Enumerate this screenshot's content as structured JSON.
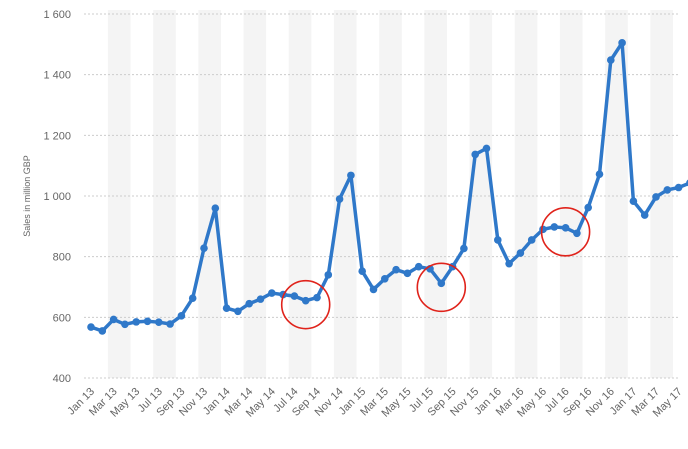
{
  "chart_data": {
    "type": "line",
    "title": "",
    "xlabel": "",
    "ylabel": "Sales in million GBP",
    "ylim": [
      400,
      1600
    ],
    "yticks": [
      400,
      600,
      800,
      1000,
      1200,
      1400,
      1600
    ],
    "ytick_labels": [
      "400",
      "600",
      "800",
      "1 000",
      "1 200",
      "1 400",
      "1 600"
    ],
    "grid": "horizontal dotted",
    "legend": "none",
    "colors": {
      "line": "#2f78c9",
      "circle": "#e0231b",
      "band": "#f4f4f4",
      "grid": "#cccccc",
      "text": "#666666"
    },
    "x": [
      "Jan 13",
      "Feb 13",
      "Mar 13",
      "Apr 13",
      "May 13",
      "Jun 13",
      "Jul 13",
      "Aug 13",
      "Sep 13",
      "Oct 13",
      "Nov 13",
      "Dec 13",
      "Jan 14",
      "Feb 14",
      "Mar 14",
      "Apr 14",
      "May 14",
      "Jun 14",
      "Jul 14",
      "Aug 14",
      "Sep 14",
      "Oct 14",
      "Nov 14",
      "Dec 14",
      "Jan 15",
      "Feb 15",
      "Mar 15",
      "Apr 15",
      "May 15",
      "Jun 15",
      "Jul 15",
      "Aug 15",
      "Sep 15",
      "Oct 15",
      "Nov 15",
      "Dec 15",
      "Jan 16",
      "Feb 16",
      "Mar 16",
      "Apr 16",
      "May 16",
      "Jun 16",
      "Jul 16",
      "Aug 16",
      "Sep 16",
      "Oct 16",
      "Nov 16",
      "Dec 16",
      "Jan 17",
      "Feb 17",
      "Mar 17",
      "Apr 17",
      "May 17",
      "Jun 17"
    ],
    "x_tick_labels": [
      "Jan 13",
      "Mar 13",
      "May 13",
      "Jul 13",
      "Sep 13",
      "Nov 13",
      "Jan 14",
      "Mar 14",
      "May 14",
      "Jul 14",
      "Sep 14",
      "Nov 14",
      "Jan 15",
      "Mar 15",
      "May 15",
      "Jul 15",
      "Sep 15",
      "Nov 15",
      "Jan 16",
      "Mar 16",
      "May 16",
      "Jul 16",
      "Sep 16",
      "Nov 16",
      "Jan 17",
      "Mar 17",
      "May 17"
    ],
    "series": [
      {
        "values": [
          568,
          555,
          593,
          577,
          585,
          587,
          584,
          578,
          605,
          663,
          828,
          960,
          630,
          620,
          645,
          660,
          680,
          675,
          670,
          655,
          665,
          740,
          990,
          1068,
          752,
          692,
          727,
          757,
          745,
          767,
          760,
          712,
          767,
          827,
          1137,
          1157,
          855,
          777,
          812,
          855,
          890,
          898,
          895,
          877,
          962,
          1072,
          1448,
          1505,
          983,
          937,
          997,
          1020,
          1028,
          1043
        ]
      }
    ],
    "annotations": [
      {
        "type": "circle",
        "center": "Aug 14"
      },
      {
        "type": "circle",
        "center": "Aug 15"
      },
      {
        "type": "circle",
        "center": "Jul 16"
      }
    ]
  }
}
